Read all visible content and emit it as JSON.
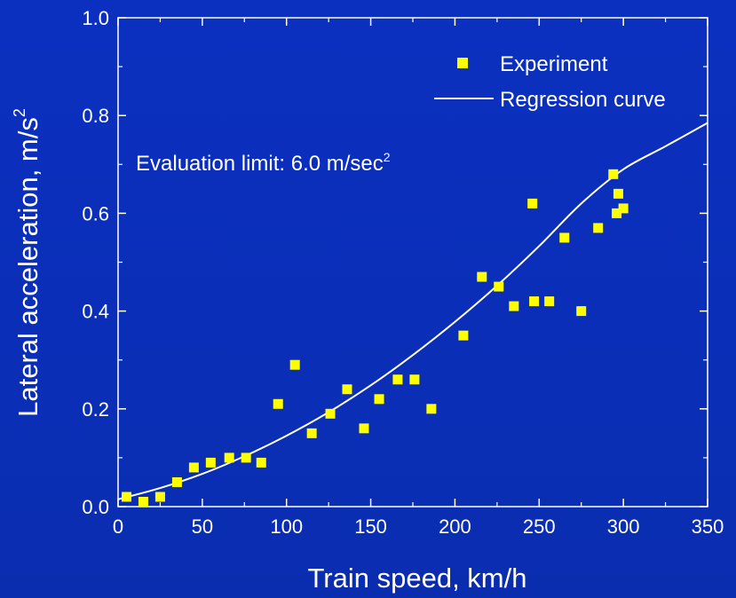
{
  "chart_data": {
    "type": "scatter",
    "xlabel": "Train speed, km/h",
    "ylabel": "Lateral acceleration, m/s",
    "ylabel_sup": "2",
    "xlim": [
      0,
      350
    ],
    "ylim": [
      0,
      1.0
    ],
    "xticks": [
      0,
      50,
      100,
      150,
      200,
      250,
      300,
      350
    ],
    "yticks": [
      0.0,
      0.2,
      0.4,
      0.6,
      0.8,
      1.0
    ],
    "ytick_labels": [
      "0.0",
      "0.2",
      "0.4",
      "0.6",
      "0.8",
      "1.0"
    ],
    "grid": false,
    "legend_position": "top-right",
    "annotation": {
      "text": "Evaluation limit: 6.0 m/sec",
      "sup": "2"
    },
    "series": [
      {
        "name": "Experiment",
        "kind": "scatter",
        "color": "#ffff00",
        "points": [
          [
            5,
            0.02
          ],
          [
            15,
            0.01
          ],
          [
            25,
            0.02
          ],
          [
            35,
            0.05
          ],
          [
            45,
            0.08
          ],
          [
            55,
            0.09
          ],
          [
            66,
            0.1
          ],
          [
            76,
            0.1
          ],
          [
            85,
            0.09
          ],
          [
            95,
            0.21
          ],
          [
            105,
            0.29
          ],
          [
            115,
            0.15
          ],
          [
            126,
            0.19
          ],
          [
            136,
            0.24
          ],
          [
            146,
            0.16
          ],
          [
            155,
            0.22
          ],
          [
            166,
            0.26
          ],
          [
            176,
            0.26
          ],
          [
            186,
            0.2
          ],
          [
            205,
            0.35
          ],
          [
            216,
            0.47
          ],
          [
            226,
            0.45
          ],
          [
            235,
            0.41
          ],
          [
            246,
            0.62
          ],
          [
            247,
            0.42
          ],
          [
            256,
            0.42
          ],
          [
            265,
            0.55
          ],
          [
            275,
            0.4
          ],
          [
            285,
            0.57
          ],
          [
            294,
            0.68
          ],
          [
            296,
            0.6
          ],
          [
            297,
            0.64
          ],
          [
            300,
            0.61
          ]
        ]
      },
      {
        "name": "Regression curve",
        "kind": "line",
        "color": "#ffffff",
        "points": [
          [
            0,
            0.015
          ],
          [
            25,
            0.038
          ],
          [
            50,
            0.067
          ],
          [
            75,
            0.103
          ],
          [
            100,
            0.145
          ],
          [
            125,
            0.193
          ],
          [
            150,
            0.248
          ],
          [
            175,
            0.31
          ],
          [
            200,
            0.378
          ],
          [
            225,
            0.452
          ],
          [
            250,
            0.533
          ],
          [
            275,
            0.62
          ],
          [
            300,
            0.69
          ],
          [
            325,
            0.737
          ],
          [
            350,
            0.785
          ]
        ]
      }
    ]
  }
}
